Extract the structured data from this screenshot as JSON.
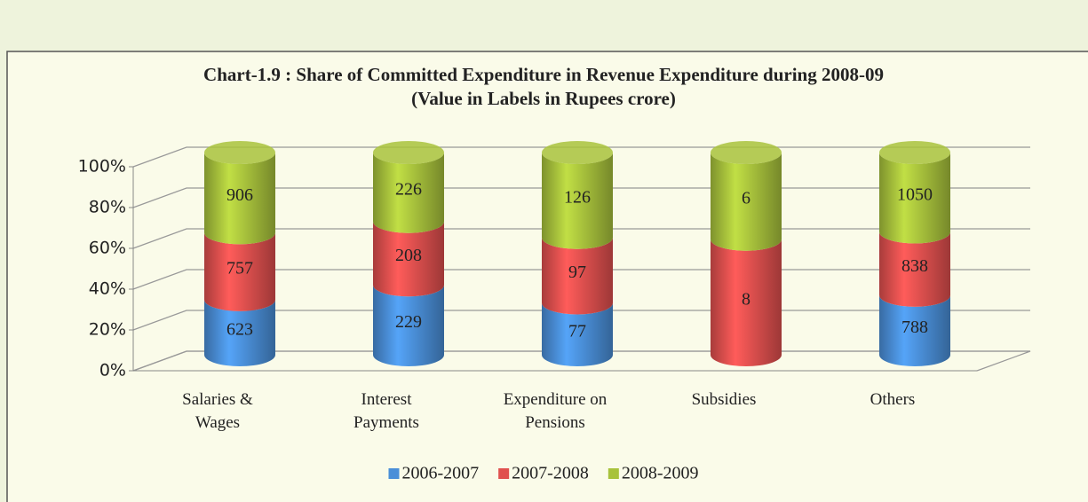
{
  "chart_data": {
    "type": "bar",
    "stack": "percent",
    "title": "Chart-1.9 : Share of Committed Expenditure in Revenue Expenditure during 2008-09",
    "subtitle": "(Value in Labels in Rupees crore)",
    "categories": [
      "Salaries & Wages",
      "Interest Payments",
      "Expenditure on Pensions",
      "Subsidies",
      "Others"
    ],
    "series": [
      {
        "name": "2006-2007",
        "color": "#4a8fd8",
        "values": [
          623,
          229,
          77,
          0,
          788
        ]
      },
      {
        "name": "2007-2008",
        "color": "#e0504e",
        "values": [
          757,
          208,
          97,
          8,
          838
        ]
      },
      {
        "name": "2008-2009",
        "color": "#a8c23c",
        "values": [
          906,
          226,
          126,
          6,
          1050
        ]
      }
    ],
    "ylim": [
      0,
      100
    ],
    "yticks": [
      {
        "value": 0,
        "label": "0%"
      },
      {
        "value": 20,
        "label": "20%"
      },
      {
        "value": 40,
        "label": "40%"
      },
      {
        "value": 60,
        "label": "60%"
      },
      {
        "value": 80,
        "label": "80%"
      },
      {
        "value": 100,
        "label": "100%"
      }
    ],
    "grid": true,
    "legend": "bottom"
  }
}
